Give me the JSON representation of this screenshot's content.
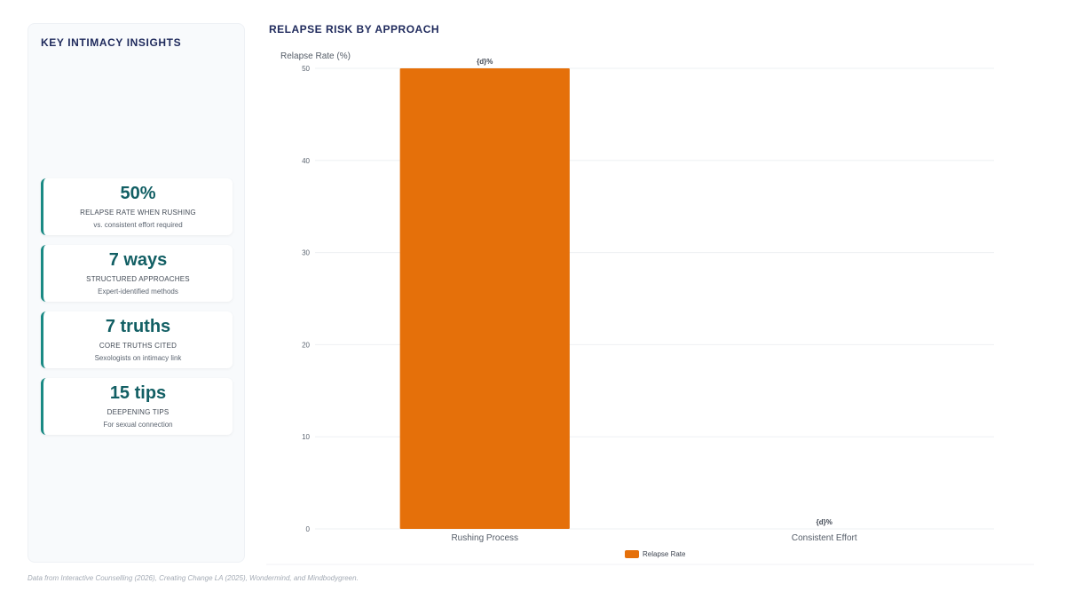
{
  "sidebar": {
    "title": "KEY INTIMACY INSIGHTS",
    "stats": [
      {
        "value": "50%",
        "label": "RELAPSE RATE WHEN RUSHING",
        "sub": "vs. consistent effort required"
      },
      {
        "value": "7 ways",
        "label": "STRUCTURED APPROACHES",
        "sub": "Expert-identified methods"
      },
      {
        "value": "7 truths",
        "label": "CORE TRUTHS CITED",
        "sub": "Sexologists on intimacy link"
      },
      {
        "value": "15 tips",
        "label": "DEEPENING TIPS",
        "sub": "For sexual connection"
      }
    ]
  },
  "chart": {
    "title": "RELAPSE RISK BY APPROACH"
  },
  "chart_data": {
    "type": "bar",
    "title": "RELAPSE RISK BY APPROACH",
    "ylabel": "Relapse Rate (%)",
    "xlabel": "",
    "categories": [
      "Rushing Process",
      "Consistent Effort"
    ],
    "series": [
      {
        "name": "Relapse Rate",
        "values": [
          50,
          0
        ],
        "color": "#e5700a"
      }
    ],
    "data_labels": [
      "{d}%",
      "{d}%"
    ],
    "ylim": [
      0,
      50
    ],
    "yticks": [
      0,
      10,
      20,
      30,
      40,
      50
    ],
    "grid": true,
    "legend": "bottom-center"
  },
  "footer": {
    "note": "Data from Interactive Counselling (2026), Creating Change LA (2025), Wondermind, and Mindbodygreen."
  }
}
